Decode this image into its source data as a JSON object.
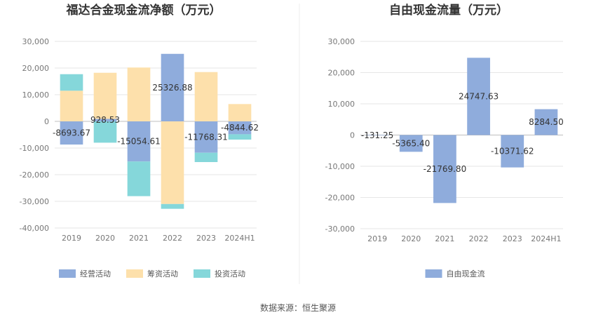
{
  "source_text": "数据来源：恒生聚源",
  "chart_data": [
    {
      "type": "bar",
      "stacked": true,
      "title": "福达合金现金流净额（万元）",
      "categories": [
        "2019",
        "2020",
        "2021",
        "2022",
        "2023",
        "2024H1"
      ],
      "ylim": [
        -40000,
        30000
      ],
      "yticks": [
        30000,
        20000,
        10000,
        0,
        -10000,
        -20000,
        -30000,
        -40000
      ],
      "ytick_labels": [
        "30,000",
        "20,000",
        "10,000",
        "0",
        "-10,000",
        "-20,000",
        "-30,000",
        "-40,000"
      ],
      "grid": true,
      "legend_position": "bottom",
      "series": [
        {
          "name": "经营活动",
          "color": "#8facdc",
          "values": [
            -8693.67,
            928.53,
            -15054.61,
            25326.88,
            -11768.31,
            -4844.62
          ]
        },
        {
          "name": "筹资活动",
          "color": "#fde0ab",
          "values": [
            11500,
            17300,
            20200,
            -31000,
            18500,
            6500
          ]
        },
        {
          "name": "投资活动",
          "color": "#85d7da",
          "values": [
            6200,
            -8000,
            -13000,
            -1800,
            -3500,
            -2000
          ]
        }
      ],
      "data_labels": [
        "-8693.67",
        "928.53",
        "-15054.61",
        "25326.88",
        "-11768.31",
        "-4844.62"
      ]
    },
    {
      "type": "bar",
      "title": "自由现金流量（万元）",
      "categories": [
        "2019",
        "2020",
        "2021",
        "2022",
        "2023",
        "2024H1"
      ],
      "ylim": [
        -30000,
        30000
      ],
      "yticks": [
        30000,
        20000,
        10000,
        0,
        -10000,
        -20000,
        -30000
      ],
      "ytick_labels": [
        "30,000",
        "20,000",
        "10,000",
        "0",
        "-10,000",
        "-20,000",
        "-30,000"
      ],
      "grid": true,
      "legend_position": "bottom",
      "series": [
        {
          "name": "自由现金流",
          "color": "#8facdc",
          "values": [
            -131.25,
            -5365.4,
            -21769.8,
            24747.63,
            -10371.62,
            8284.5
          ]
        }
      ],
      "data_labels": [
        "-131.25",
        "-5365.40",
        "-21769.80",
        "24747.63",
        "-10371.62",
        "8284.50"
      ]
    }
  ]
}
